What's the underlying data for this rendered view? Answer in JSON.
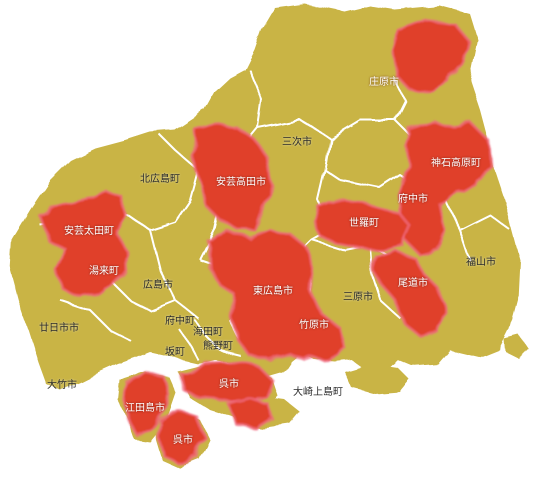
{
  "colors": {
    "land": "#c9b445",
    "land_shade": "#b6a13a",
    "border": "#ffffff",
    "highlight": "#e0412a",
    "highlight_edge": "#f06a7f",
    "label_dark": "#2b2b2b",
    "label_light": "#ffffff"
  },
  "legend": "none",
  "municipalities": [
    {
      "id": "shobara",
      "name": "庄原市",
      "highlighted": true
    },
    {
      "id": "miyoshi",
      "name": "三次市",
      "highlighted": false
    },
    {
      "id": "kitahiroshima",
      "name": "北広島町",
      "highlighted": false
    },
    {
      "id": "akitakata",
      "name": "安芸高田市",
      "highlighted": true
    },
    {
      "id": "jinsekikogen",
      "name": "神石高原町",
      "highlighted": true
    },
    {
      "id": "fuchu-city",
      "name": "府中市",
      "highlighted": true
    },
    {
      "id": "akiota",
      "name": "安芸太田町",
      "highlighted": true
    },
    {
      "id": "sera",
      "name": "世羅町",
      "highlighted": true
    },
    {
      "id": "yuki",
      "name": "湯来町",
      "highlighted": true
    },
    {
      "id": "fukuyama",
      "name": "福山市",
      "highlighted": false
    },
    {
      "id": "hiroshima",
      "name": "広島市",
      "highlighted": false
    },
    {
      "id": "higashihiroshima",
      "name": "東広島市",
      "highlighted": true
    },
    {
      "id": "mihara",
      "name": "三原市",
      "highlighted": false
    },
    {
      "id": "onomichi",
      "name": "尾道市",
      "highlighted": true
    },
    {
      "id": "fuchu-town",
      "name": "府中町",
      "highlighted": false
    },
    {
      "id": "hatsukaichi",
      "name": "廿日市市",
      "highlighted": false
    },
    {
      "id": "takehara",
      "name": "竹原市",
      "highlighted": true
    },
    {
      "id": "kaita",
      "name": "海田町",
      "highlighted": false
    },
    {
      "id": "kumano",
      "name": "熊野町",
      "highlighted": false
    },
    {
      "id": "saka",
      "name": "坂町",
      "highlighted": false
    },
    {
      "id": "kure",
      "name": "呉市",
      "highlighted": true
    },
    {
      "id": "otake",
      "name": "大竹市",
      "highlighted": false
    },
    {
      "id": "osakikamijima",
      "name": "大崎上島町",
      "highlighted": false
    },
    {
      "id": "etajima",
      "name": "江田島市",
      "highlighted": true
    },
    {
      "id": "kure-islands",
      "name": "呉市",
      "highlighted": true
    }
  ]
}
